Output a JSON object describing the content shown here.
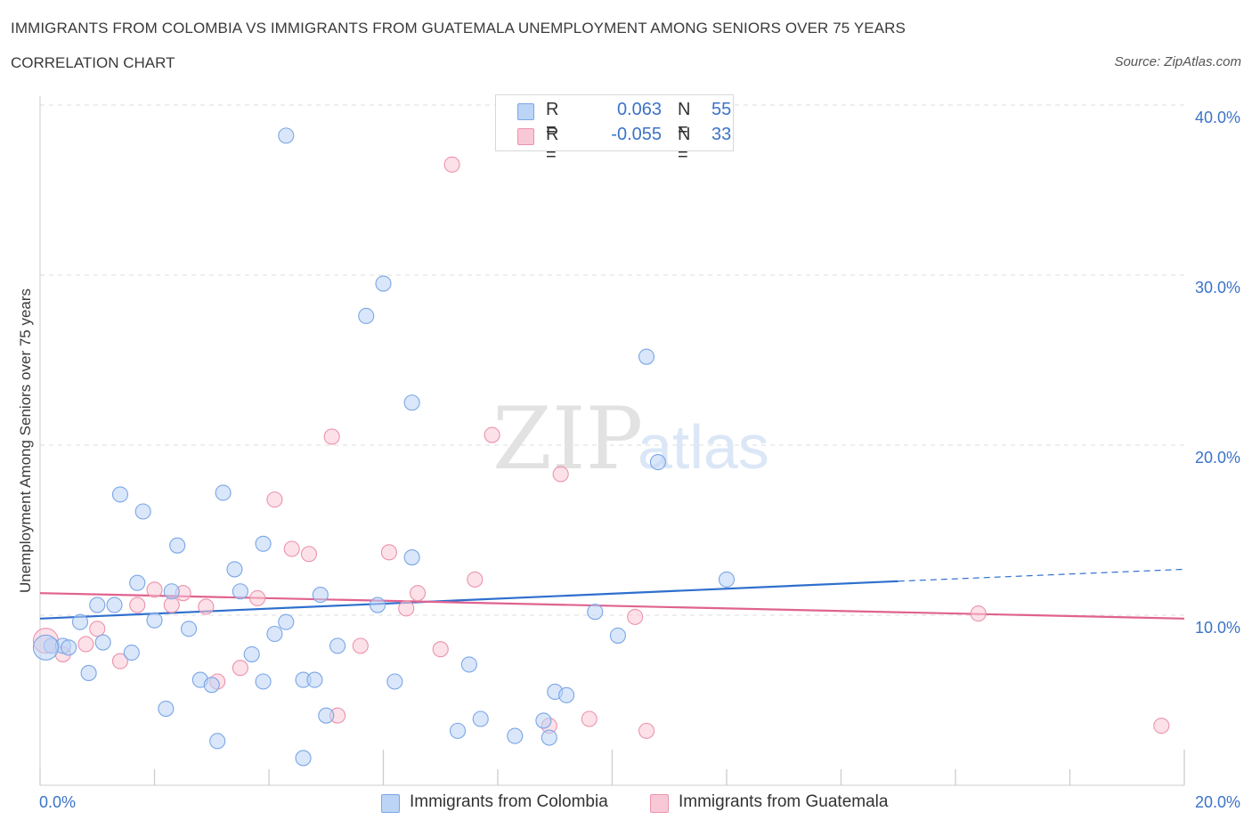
{
  "header": {
    "title": "IMMIGRANTS FROM COLOMBIA VS IMMIGRANTS FROM GUATEMALA UNEMPLOYMENT AMONG SENIORS OVER 75 YEARS",
    "subtitle": "CORRELATION CHART",
    "source": "Source: ZipAtlas.com"
  },
  "watermark": {
    "zip": "ZIP",
    "atlas": "atlas"
  },
  "legend": {
    "row1": {
      "r_label": "R =",
      "r_value": "0.063",
      "n_label": "N =",
      "n_value": "55"
    },
    "row2": {
      "r_label": "R =",
      "r_value": "-0.055",
      "n_label": "N =",
      "n_value": "33"
    }
  },
  "bottom_legend": {
    "colombia": "Immigrants from Colombia",
    "guatemala": "Immigrants from Guatemala"
  },
  "colors": {
    "colombia_fill": "#bcd4f6",
    "colombia_stroke": "#7aa6e6",
    "colombia_line": "#2f6fcd",
    "guatemala_fill": "#f9c8d6",
    "guatemala_stroke": "#eb93ac",
    "guatemala_line": "#e0628f",
    "tick_text": "#3b73c8",
    "grid": "#dddddd"
  },
  "chart_data": {
    "type": "scatter",
    "title": "IMMIGRANTS FROM COLOMBIA VS IMMIGRANTS FROM GUATEMALA UNEMPLOYMENT AMONG SENIORS OVER 75 YEARS",
    "xlabel": "",
    "ylabel": "Unemployment Among Seniors over 75 years",
    "xlim": [
      0,
      20
    ],
    "ylim": [
      0,
      40
    ],
    "x_tick_labels": [
      "0.0%",
      "20.0%"
    ],
    "y_ticks": [
      10,
      20,
      30,
      40
    ],
    "y_tick_labels": [
      "10.0%",
      "20.0%",
      "30.0%",
      "40.0%"
    ],
    "grid": true,
    "legend_position": "top-center",
    "series": [
      {
        "name": "Immigrants from Colombia",
        "points": [
          [
            4.3,
            38.2
          ],
          [
            6.0,
            29.5
          ],
          [
            5.7,
            27.6
          ],
          [
            10.6,
            25.2
          ],
          [
            6.5,
            22.5
          ],
          [
            10.8,
            19.0
          ],
          [
            1.4,
            17.1
          ],
          [
            3.2,
            17.2
          ],
          [
            1.8,
            16.1
          ],
          [
            2.4,
            14.1
          ],
          [
            3.9,
            14.2
          ],
          [
            6.5,
            13.4
          ],
          [
            3.4,
            12.7
          ],
          [
            12.0,
            12.1
          ],
          [
            1.7,
            11.9
          ],
          [
            2.3,
            11.4
          ],
          [
            3.5,
            11.4
          ],
          [
            4.9,
            11.2
          ],
          [
            1.3,
            10.6
          ],
          [
            1.0,
            10.6
          ],
          [
            5.9,
            10.6
          ],
          [
            9.7,
            10.2
          ],
          [
            2.0,
            9.7
          ],
          [
            4.3,
            9.6
          ],
          [
            0.7,
            9.6
          ],
          [
            2.6,
            9.2
          ],
          [
            4.1,
            8.9
          ],
          [
            10.1,
            8.8
          ],
          [
            1.1,
            8.4
          ],
          [
            5.2,
            8.2
          ],
          [
            0.2,
            8.2
          ],
          [
            0.4,
            8.2
          ],
          [
            0.5,
            8.1
          ],
          [
            1.6,
            7.8
          ],
          [
            3.7,
            7.7
          ],
          [
            7.5,
            7.1
          ],
          [
            0.1,
            8.1
          ],
          [
            0.85,
            6.6
          ],
          [
            2.8,
            6.2
          ],
          [
            3.9,
            6.1
          ],
          [
            4.6,
            6.2
          ],
          [
            4.8,
            6.2
          ],
          [
            6.2,
            6.1
          ],
          [
            3.0,
            5.9
          ],
          [
            9.0,
            5.5
          ],
          [
            9.2,
            5.3
          ],
          [
            2.2,
            4.5
          ],
          [
            5.0,
            4.1
          ],
          [
            7.7,
            3.9
          ],
          [
            8.8,
            3.8
          ],
          [
            7.3,
            3.2
          ],
          [
            8.3,
            2.9
          ],
          [
            8.9,
            2.8
          ],
          [
            3.1,
            2.6
          ],
          [
            4.6,
            1.6
          ]
        ]
      },
      {
        "name": "Immigrants from Guatemala",
        "points": [
          [
            7.2,
            36.5
          ],
          [
            5.1,
            20.5
          ],
          [
            7.9,
            20.6
          ],
          [
            9.1,
            18.3
          ],
          [
            4.1,
            16.8
          ],
          [
            4.4,
            13.9
          ],
          [
            4.7,
            13.6
          ],
          [
            6.1,
            13.7
          ],
          [
            7.6,
            12.1
          ],
          [
            2.0,
            11.5
          ],
          [
            2.5,
            11.3
          ],
          [
            6.6,
            11.3
          ],
          [
            3.8,
            11.0
          ],
          [
            1.7,
            10.6
          ],
          [
            2.3,
            10.6
          ],
          [
            2.9,
            10.5
          ],
          [
            6.4,
            10.4
          ],
          [
            10.4,
            9.9
          ],
          [
            16.4,
            10.1
          ],
          [
            1.0,
            9.2
          ],
          [
            0.8,
            8.3
          ],
          [
            5.6,
            8.2
          ],
          [
            7.0,
            8.0
          ],
          [
            0.4,
            7.7
          ],
          [
            1.4,
            7.3
          ],
          [
            3.5,
            6.9
          ],
          [
            3.1,
            6.1
          ],
          [
            5.2,
            4.1
          ],
          [
            9.6,
            3.9
          ],
          [
            8.9,
            3.5
          ],
          [
            10.6,
            3.2
          ],
          [
            19.6,
            3.5
          ],
          [
            0.1,
            8.5
          ]
        ]
      }
    ],
    "trend_lines": [
      {
        "name": "Immigrants from Colombia",
        "x": [
          0,
          15
        ],
        "y": [
          9.8,
          12.0
        ],
        "dashed_extension_x": [
          15,
          20
        ],
        "dashed_extension_y": [
          12.0,
          12.7
        ]
      },
      {
        "name": "Immigrants from Guatemala",
        "x": [
          0,
          20
        ],
        "y": [
          11.3,
          9.8
        ]
      }
    ]
  }
}
